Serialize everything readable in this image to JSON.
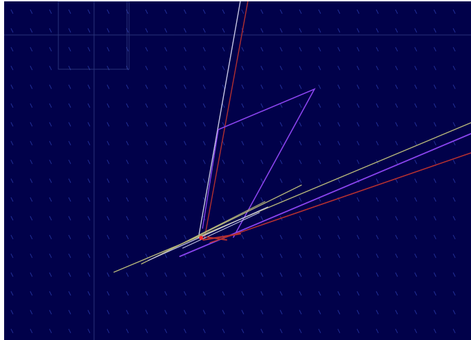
{
  "scene": {
    "colors": {
      "background": "#01014a",
      "vector_field": "#2a3aa8",
      "grid": "#4a5aa0",
      "purple": "#8a44ee",
      "red": "#b43030",
      "olive": "#b8b87a",
      "pale": "#c9c9e6",
      "marker": "#ff2a2a"
    },
    "vector_field": {
      "glyph": "\\"
    }
  }
}
